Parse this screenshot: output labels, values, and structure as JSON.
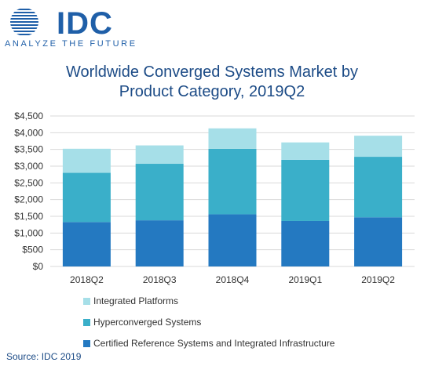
{
  "logo": {
    "wordmark": "IDC",
    "tagline": "ANALYZE THE FUTURE",
    "icon": "idc-globe-icon"
  },
  "colors": {
    "brand": "#1f5fa8",
    "title": "#1c4b86",
    "integrated_platforms": "#a6dfe8",
    "hyperconverged_systems": "#3aafc9",
    "certified_reference": "#2479c1",
    "grid": "#d9d9d9"
  },
  "chart_data": {
    "type": "bar",
    "stacked": true,
    "title": "Worldwide Converged Systems Market by Product Category, 2019Q2",
    "title_lines": [
      "Worldwide Converged Systems Market by",
      "Product Category, 2019Q2"
    ],
    "xlabel": "",
    "ylabel": "",
    "categories": [
      "2018Q2",
      "2018Q3",
      "2018Q4",
      "2019Q1",
      "2019Q2"
    ],
    "ylim": [
      0,
      4500
    ],
    "yticks": [
      0,
      500,
      1000,
      1500,
      2000,
      2500,
      3000,
      3500,
      4000,
      4500
    ],
    "ytick_labels": [
      "$0",
      "$500",
      "$1,000",
      "$1,500",
      "$2,000",
      "$2,500",
      "$3,000",
      "$3,500",
      "$4,000",
      "$4,500"
    ],
    "grid": true,
    "legend_position": "bottom",
    "series": [
      {
        "name": "Certified Reference Systems and Integrated Infrastructure",
        "color_key": "certified_reference",
        "values": [
          1330,
          1380,
          1560,
          1360,
          1470
        ]
      },
      {
        "name": "Hyperconverged Systems",
        "color_key": "hyperconverged_systems",
        "values": [
          1470,
          1690,
          1960,
          1830,
          1810
        ]
      },
      {
        "name": "Integrated Platforms",
        "color_key": "integrated_platforms",
        "values": [
          720,
          550,
          610,
          520,
          630
        ]
      }
    ],
    "legend_order": [
      "Integrated Platforms",
      "Hyperconverged Systems",
      "Certified Reference Systems and Integrated Infrastructure"
    ]
  },
  "source": "Source: IDC 2019"
}
